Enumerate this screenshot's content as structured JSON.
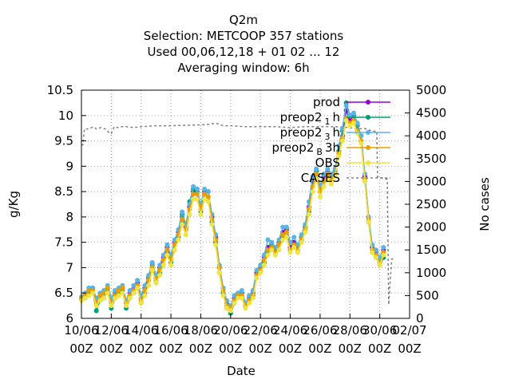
{
  "chart_data": {
    "type": "line",
    "title_lines": [
      "Q2m",
      "Selection: METCOOP     357 stations",
      "Used  00,06,12,18 + 01 02 ... 12",
      "Averaging window:  6h"
    ],
    "xlabel": "Date",
    "ylabel": "g/Kg",
    "y2label": "No cases",
    "xlim": [
      0,
      21
    ],
    "ylim": [
      6,
      10.5
    ],
    "y2lim": [
      0,
      5000
    ],
    "x_ticks": [
      {
        "x": 0,
        "l1": "10/06",
        "l2": "00Z"
      },
      {
        "x": 2,
        "l1": "12/06",
        "l2": "00Z"
      },
      {
        "x": 4,
        "l1": "14/06",
        "l2": "00Z"
      },
      {
        "x": 6,
        "l1": "16/06",
        "l2": "00Z"
      },
      {
        "x": 8,
        "l1": "18/06",
        "l2": "00Z"
      },
      {
        "x": 10,
        "l1": "20/06",
        "l2": "00Z"
      },
      {
        "x": 12,
        "l1": "22/06",
        "l2": "00Z"
      },
      {
        "x": 14,
        "l1": "24/06",
        "l2": "00Z"
      },
      {
        "x": 16,
        "l1": "26/06",
        "l2": "00Z"
      },
      {
        "x": 18,
        "l1": "28/06",
        "l2": "00Z"
      },
      {
        "x": 20,
        "l1": "30/06",
        "l2": "00Z"
      },
      {
        "x": 22,
        "l1": "02/07",
        "l2": "00Z"
      }
    ],
    "y_ticks": [
      "6",
      "6.5",
      "7",
      "7.5",
      "8",
      "8.5",
      "9",
      "9.5",
      "10",
      "10.5"
    ],
    "y_tick_values": [
      6,
      6.5,
      7,
      7.5,
      8,
      8.5,
      9,
      9.5,
      10,
      10.5
    ],
    "y2_ticks": [
      "0",
      "500",
      "1000",
      "1500",
      "2000",
      "2500",
      "3000",
      "3500",
      "4000",
      "4500",
      "5000"
    ],
    "y2_tick_values": [
      0,
      500,
      1000,
      1500,
      2000,
      2500,
      3000,
      3500,
      4000,
      4500,
      5000
    ],
    "grid": true,
    "legend_position": "top-right",
    "series": [
      {
        "key": "prod",
        "label": "prod",
        "sub": "",
        "color": "#9400d3",
        "marker": "circle"
      },
      {
        "key": "preop1",
        "label": "preop2",
        "sub": "1",
        "suffix": "h",
        "color": "#009e73",
        "marker": "circle"
      },
      {
        "key": "preop3",
        "label": "preop2",
        "sub": "3",
        "suffix": "h",
        "color": "#56b4e9",
        "marker": "circle"
      },
      {
        "key": "preopB",
        "label": "preop2",
        "sub": "B",
        "suffix": "3h",
        "color": "#e69f00",
        "marker": "circle"
      },
      {
        "key": "obs",
        "label": "OBS",
        "sub": "",
        "color": "#f0e442",
        "marker": "circle"
      },
      {
        "key": "cases",
        "label": "CASES",
        "sub": "",
        "color": "#808080",
        "marker": "none"
      }
    ],
    "x": [
      0,
      0.25,
      0.5,
      0.75,
      1,
      1.25,
      1.5,
      1.75,
      2,
      2.25,
      2.5,
      2.75,
      3,
      3.25,
      3.5,
      3.75,
      4,
      4.25,
      4.5,
      4.75,
      5,
      5.25,
      5.5,
      5.75,
      6,
      6.25,
      6.5,
      6.75,
      7,
      7.25,
      7.5,
      7.75,
      8,
      8.25,
      8.5,
      8.75,
      9,
      9.25,
      9.5,
      9.75,
      10,
      10.25,
      10.5,
      10.75,
      11,
      11.25,
      11.5,
      11.75,
      12,
      12.25,
      12.5,
      12.75,
      13,
      13.25,
      13.5,
      13.75,
      14,
      14.25,
      14.5,
      14.75,
      15,
      15.25,
      15.5,
      15.75,
      16,
      16.25,
      16.5,
      16.75,
      17,
      17.25,
      17.5,
      17.75,
      18,
      18.25,
      18.5,
      18.75,
      19,
      19.25,
      19.5,
      19.75,
      20,
      20.25
    ],
    "values": {
      "prod": [
        6.4,
        6.45,
        6.55,
        6.6,
        6.35,
        6.45,
        6.5,
        6.6,
        6.35,
        6.5,
        6.55,
        6.6,
        6.3,
        6.5,
        6.6,
        6.7,
        6.4,
        6.6,
        6.8,
        7.1,
        6.8,
        7.0,
        7.2,
        7.4,
        7.2,
        7.5,
        7.7,
        8.0,
        7.8,
        8.2,
        8.5,
        8.55,
        8.2,
        8.5,
        8.5,
        8.0,
        7.6,
        7.0,
        6.6,
        6.3,
        6.2,
        6.4,
        6.5,
        6.5,
        6.3,
        6.4,
        6.5,
        6.9,
        7.0,
        7.2,
        7.4,
        7.5,
        7.35,
        7.5,
        7.7,
        7.75,
        7.4,
        7.5,
        7.4,
        7.6,
        7.8,
        8.2,
        8.7,
        8.9,
        8.6,
        8.8,
        8.9,
        8.8,
        8.9,
        9.3,
        9.6,
        10.1,
        9.9,
        10.0,
        9.8,
        9.6,
        8.8,
        8.0,
        7.4,
        7.3,
        7.2,
        7.35
      ],
      "preop1": [
        6.38,
        6.4,
        6.5,
        6.55,
        6.15,
        6.35,
        6.4,
        6.55,
        6.2,
        6.4,
        6.5,
        6.55,
        6.2,
        6.4,
        6.5,
        6.6,
        6.3,
        6.5,
        6.75,
        7.05,
        6.7,
        6.9,
        7.15,
        7.35,
        7.1,
        7.45,
        7.6,
        8.05,
        7.75,
        8.3,
        8.55,
        8.5,
        8.1,
        8.45,
        8.4,
        7.9,
        7.5,
        6.9,
        6.5,
        6.2,
        6.1,
        6.3,
        6.45,
        6.5,
        6.25,
        6.35,
        6.45,
        6.85,
        6.95,
        7.1,
        7.3,
        7.45,
        7.3,
        7.45,
        7.6,
        7.7,
        7.35,
        7.45,
        7.4,
        7.6,
        7.8,
        8.1,
        8.6,
        8.9,
        8.5,
        8.7,
        8.8,
        8.75,
        8.9,
        9.3,
        9.7,
        10.25,
        10.0,
        10.0,
        9.8,
        9.5,
        8.7,
        7.9,
        7.3,
        7.2,
        7.05,
        7.2
      ],
      "preop3": [
        6.42,
        6.5,
        6.6,
        6.6,
        6.4,
        6.5,
        6.55,
        6.65,
        6.4,
        6.55,
        6.6,
        6.65,
        6.35,
        6.55,
        6.65,
        6.75,
        6.45,
        6.65,
        6.85,
        7.1,
        6.85,
        7.05,
        7.25,
        7.45,
        7.25,
        7.55,
        7.75,
        8.1,
        7.85,
        8.25,
        8.6,
        8.55,
        8.25,
        8.55,
        8.5,
        8.05,
        7.65,
        7.05,
        6.6,
        6.35,
        6.25,
        6.45,
        6.5,
        6.55,
        6.3,
        6.45,
        6.55,
        6.95,
        7.05,
        7.25,
        7.55,
        7.5,
        7.4,
        7.55,
        7.8,
        7.8,
        7.5,
        7.6,
        7.45,
        7.65,
        7.85,
        8.3,
        8.8,
        8.95,
        8.6,
        8.85,
        8.95,
        8.85,
        8.95,
        9.4,
        9.75,
        10.2,
        10.0,
        10.05,
        9.85,
        9.6,
        8.85,
        8.0,
        7.45,
        7.35,
        7.2,
        7.4
      ],
      "preopB": [
        6.4,
        6.45,
        6.55,
        6.55,
        6.3,
        6.45,
        6.5,
        6.6,
        6.3,
        6.45,
        6.55,
        6.6,
        6.3,
        6.45,
        6.55,
        6.65,
        6.35,
        6.55,
        6.75,
        7.0,
        6.75,
        6.95,
        7.15,
        7.35,
        7.15,
        7.45,
        7.65,
        7.95,
        7.75,
        8.15,
        8.45,
        8.45,
        8.15,
        8.45,
        8.4,
        7.95,
        7.55,
        7.0,
        6.55,
        6.25,
        6.2,
        6.35,
        6.45,
        6.45,
        6.25,
        6.35,
        6.45,
        6.85,
        6.95,
        7.15,
        7.35,
        7.4,
        7.3,
        7.45,
        7.65,
        7.7,
        7.35,
        7.45,
        7.35,
        7.55,
        7.75,
        8.15,
        8.6,
        8.85,
        8.5,
        8.7,
        8.85,
        8.75,
        8.85,
        9.25,
        9.55,
        9.95,
        9.85,
        9.9,
        9.7,
        9.5,
        8.75,
        7.95,
        7.35,
        7.25,
        7.1,
        7.3
      ],
      "obs": [
        6.35,
        6.4,
        6.45,
        6.5,
        6.25,
        6.35,
        6.4,
        6.5,
        6.25,
        6.4,
        6.45,
        6.5,
        6.25,
        6.4,
        6.5,
        6.6,
        6.3,
        6.45,
        6.65,
        6.95,
        6.7,
        6.85,
        7.05,
        7.25,
        7.05,
        7.35,
        7.55,
        7.85,
        7.65,
        8.05,
        8.35,
        8.35,
        8.05,
        8.35,
        8.3,
        7.85,
        7.45,
        6.9,
        6.45,
        6.2,
        6.15,
        6.3,
        6.4,
        6.4,
        6.2,
        6.3,
        6.4,
        6.8,
        6.9,
        7.05,
        7.25,
        7.35,
        7.25,
        7.35,
        7.55,
        7.6,
        7.3,
        7.4,
        7.3,
        7.5,
        7.7,
        8.05,
        8.5,
        8.75,
        8.4,
        8.6,
        8.75,
        8.65,
        8.8,
        9.2,
        9.5,
        9.9,
        9.8,
        9.85,
        9.65,
        9.45,
        8.7,
        7.9,
        7.3,
        7.2,
        7.05,
        7.25
      ]
    },
    "cases_x": [
      0,
      0.1,
      0.2,
      0.5,
      0.8,
      1.0,
      1.3,
      1.6,
      1.9,
      2.0,
      2.2,
      2.4,
      2.6,
      3,
      3.5,
      4,
      5,
      6,
      7,
      8,
      8.5,
      9,
      9.5,
      10,
      11,
      12,
      13,
      14,
      15,
      16,
      17,
      18,
      18.5,
      19,
      19.5,
      19.8,
      19.85,
      20,
      20.3,
      20.5,
      20.6,
      20.8,
      21
    ],
    "cases_y": [
      3800,
      3800,
      4150,
      4150,
      4200,
      4150,
      4180,
      4150,
      4050,
      4050,
      4200,
      4180,
      4200,
      4200,
      4180,
      4200,
      4220,
      4220,
      4230,
      4240,
      4250,
      4280,
      4220,
      4220,
      4200,
      4200,
      4200,
      4180,
      4200,
      4200,
      4200,
      4180,
      4150,
      4160,
      4100,
      4100,
      3100,
      3100,
      3050,
      3050,
      300,
      1300,
      1300
    ]
  }
}
